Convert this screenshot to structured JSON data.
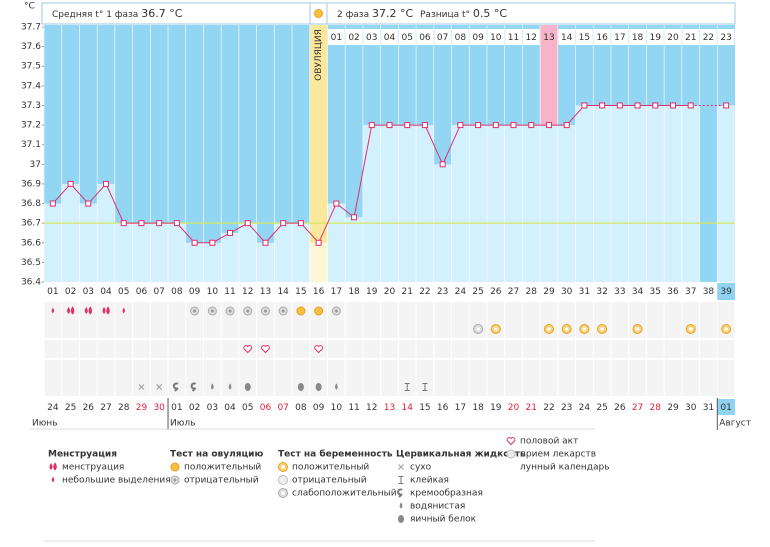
{
  "header": {
    "phase1_label": "Средняя t° 1 фаза",
    "phase1_value": "36.7 °C",
    "phase2_label": "2 фаза",
    "phase2_value": "37.2 °C",
    "diff_label": "Разница t°",
    "diff_value": "0.5 °C"
  },
  "chart_data": {
    "type": "line",
    "y_unit": "°C",
    "ovulation_label": "ОВУЛЯЦИЯ",
    "categories": [
      "01",
      "02",
      "03",
      "04",
      "05",
      "06",
      "07",
      "08",
      "09",
      "10",
      "11",
      "12",
      "13",
      "14",
      "15",
      "16",
      "17",
      "18",
      "19",
      "20",
      "21",
      "22",
      "23",
      "24",
      "25",
      "26",
      "27",
      "28",
      "29",
      "30",
      "31",
      "32",
      "33",
      "34",
      "35",
      "36",
      "37",
      "38",
      "39"
    ],
    "luteal_days": [
      "01",
      "02",
      "03",
      "04",
      "05",
      "06",
      "07",
      "08",
      "09",
      "10",
      "11",
      "12",
      "13",
      "14",
      "15",
      "16",
      "17",
      "18",
      "19",
      "20",
      "21",
      "22",
      "23"
    ],
    "series": [
      {
        "color": "#e0306a",
        "values": [
          36.8,
          36.9,
          36.8,
          36.9,
          36.7,
          36.7,
          36.7,
          36.7,
          36.6,
          36.6,
          36.65,
          36.7,
          36.6,
          36.7,
          36.7,
          36.6,
          36.8,
          36.73,
          37.2,
          37.2,
          37.2,
          37.2,
          37,
          37.2,
          37.2,
          37.2,
          37.2,
          37.2,
          37.2,
          37.2,
          37.3,
          37.3,
          37.3,
          37.3,
          37.3,
          37.3,
          37.3,
          null,
          37.3
        ]
      }
    ],
    "coverline": 36.7,
    "ylim": [
      36.4,
      37.7
    ],
    "yticks": [
      37.7,
      37.6,
      37.5,
      37.4,
      37.3,
      37.2,
      37.1,
      37,
      36.9,
      36.8,
      36.7,
      36.6,
      36.5,
      36.4
    ],
    "dates": [
      "24",
      "25",
      "26",
      "27",
      "28",
      "29",
      "30",
      "01",
      "02",
      "03",
      "04",
      "05",
      "06",
      "07",
      "08",
      "09",
      "10",
      "11",
      "12",
      "13",
      "14",
      "15",
      "16",
      "17",
      "18",
      "19",
      "20",
      "21",
      "22",
      "23",
      "24",
      "25",
      "26",
      "27",
      "28",
      "29",
      "30",
      "31",
      "01"
    ],
    "months": [
      "Июнь",
      "Июль",
      "Август"
    ]
  },
  "legend": [
    {
      "title": "Менструация",
      "items": [
        "менструация",
        "небольшие выделения"
      ]
    },
    {
      "title": "Тест на овуляцию",
      "items": [
        "положительный",
        "отрицательный"
      ]
    },
    {
      "title": "Тест на беременность",
      "items": [
        "положительный",
        "отрицательный",
        "слабоположительный"
      ]
    },
    {
      "title": "Цервикальная жидкость",
      "items": [
        "сухо",
        "клейкая",
        "кремообразная",
        "водянистая",
        "яичный белок"
      ]
    },
    {
      "items": [
        "половой акт",
        "прием лекарств",
        "лунный календарь"
      ]
    }
  ]
}
